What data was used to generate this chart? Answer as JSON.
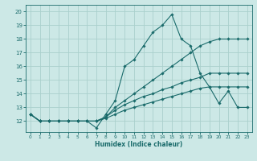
{
  "xlabel": "Humidex (Indice chaleur)",
  "xlim": [
    -0.5,
    23.5
  ],
  "ylim": [
    11.2,
    20.5
  ],
  "yticks": [
    12,
    13,
    14,
    15,
    16,
    17,
    18,
    19,
    20
  ],
  "xticks": [
    0,
    1,
    2,
    3,
    4,
    5,
    6,
    7,
    8,
    9,
    10,
    11,
    12,
    13,
    14,
    15,
    16,
    17,
    18,
    19,
    20,
    21,
    22,
    23
  ],
  "bg_color": "#cce8e6",
  "grid_color": "#aad0cc",
  "line_color": "#1a6b6b",
  "lines": [
    [
      12.5,
      12.0,
      12.0,
      12.0,
      12.0,
      12.0,
      12.0,
      11.5,
      12.5,
      13.5,
      16.0,
      16.5,
      17.5,
      18.5,
      19.0,
      19.8,
      18.0,
      17.5,
      15.5,
      14.5,
      13.3,
      14.2,
      13.0,
      13.0
    ],
    [
      12.5,
      12.0,
      12.0,
      12.0,
      12.0,
      12.0,
      12.0,
      12.0,
      12.3,
      13.0,
      13.5,
      14.0,
      14.5,
      15.0,
      15.5,
      16.0,
      16.5,
      17.0,
      17.5,
      17.8,
      18.0,
      18.0,
      18.0,
      18.0
    ],
    [
      12.5,
      12.0,
      12.0,
      12.0,
      12.0,
      12.0,
      12.0,
      12.0,
      12.3,
      12.8,
      13.2,
      13.5,
      13.8,
      14.0,
      14.3,
      14.5,
      14.8,
      15.0,
      15.2,
      15.5,
      15.5,
      15.5,
      15.5,
      15.5
    ],
    [
      12.5,
      12.0,
      12.0,
      12.0,
      12.0,
      12.0,
      12.0,
      12.0,
      12.2,
      12.5,
      12.8,
      13.0,
      13.2,
      13.4,
      13.6,
      13.8,
      14.0,
      14.2,
      14.4,
      14.5,
      14.5,
      14.5,
      14.5,
      14.5
    ]
  ]
}
